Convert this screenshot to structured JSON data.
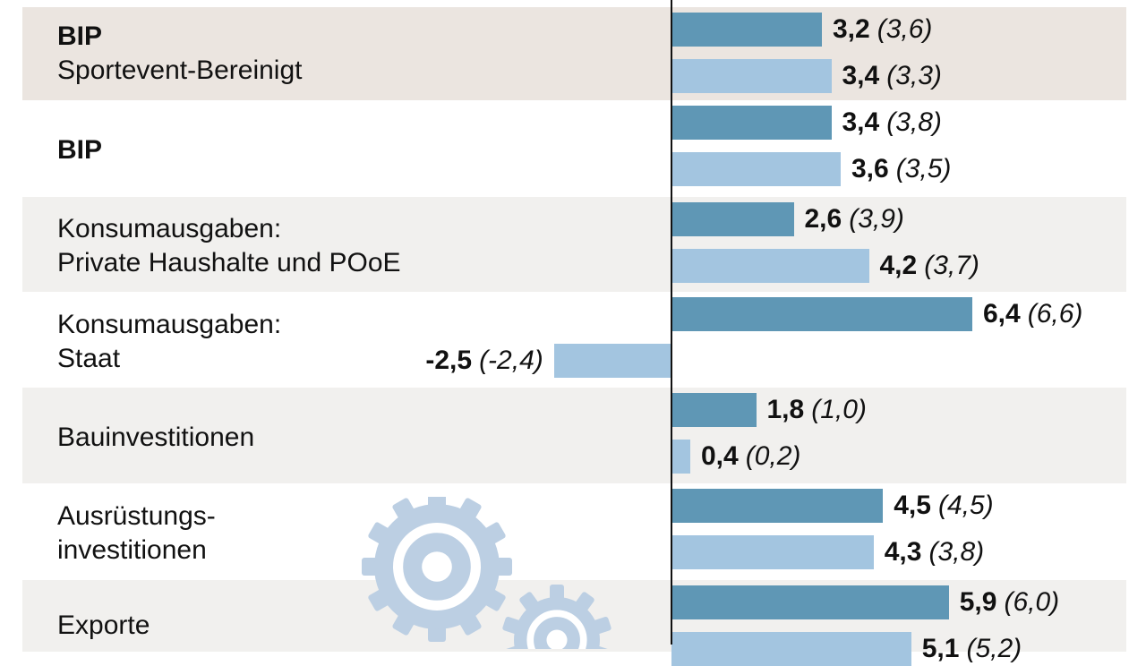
{
  "chart_data": {
    "type": "bar",
    "orientation": "horizontal",
    "colors": {
      "primary": "#5f97b5",
      "secondary": "#a3c5e0",
      "row_alt": "#f1f0ee",
      "row_highlight": "#ebe5e0"
    },
    "categories": [
      {
        "label": "BIP",
        "sublabel": "Sportevent-Bereinigt",
        "bold": true,
        "values": [
          3.2,
          3.4
        ],
        "prev": [
          3.6,
          3.3
        ],
        "value_labels": [
          "3,2",
          "3,4"
        ],
        "prev_labels": [
          "(3,6)",
          "(3,3)"
        ]
      },
      {
        "label": "BIP",
        "sublabel": "",
        "bold": true,
        "values": [
          3.4,
          3.6
        ],
        "prev": [
          3.8,
          3.5
        ],
        "value_labels": [
          "3,4",
          "3,6"
        ],
        "prev_labels": [
          "(3,8)",
          "(3,5)"
        ]
      },
      {
        "label": "Konsumausgaben:\nPrivate Haushalte und POoE",
        "sublabel": "",
        "bold": false,
        "values": [
          2.6,
          4.2
        ],
        "prev": [
          3.9,
          3.7
        ],
        "value_labels": [
          "2,6",
          "4,2"
        ],
        "prev_labels": [
          "(3,9)",
          "(3,7)"
        ]
      },
      {
        "label": "Konsumausgaben:\nStaat",
        "sublabel": "",
        "bold": false,
        "values": [
          6.4,
          -2.5
        ],
        "prev": [
          6.6,
          -2.4
        ],
        "value_labels": [
          "6,4",
          "-2,5"
        ],
        "prev_labels": [
          "(6,6)",
          "(-2,4)"
        ]
      },
      {
        "label": "Bauinvestitionen",
        "sublabel": "",
        "bold": false,
        "values": [
          1.8,
          0.4
        ],
        "prev": [
          1.0,
          0.2
        ],
        "value_labels": [
          "1,8",
          "0,4"
        ],
        "prev_labels": [
          "(1,0)",
          "(0,2)"
        ]
      },
      {
        "label": "Ausrüstungs-\ninvestitionen",
        "sublabel": "",
        "bold": false,
        "values": [
          4.5,
          4.3
        ],
        "prev": [
          4.5,
          3.8
        ],
        "value_labels": [
          "4,5",
          "4,3"
        ],
        "prev_labels": [
          "(4,5)",
          "(3,8)"
        ]
      },
      {
        "label": "Exporte",
        "sublabel": "",
        "bold": false,
        "values": [
          5.9,
          5.1
        ],
        "prev": [
          6.0,
          5.2
        ],
        "value_labels": [
          "5,9",
          "5,1"
        ],
        "prev_labels": [
          "(6,0)",
          "(5,2)"
        ]
      }
    ],
    "grid": false,
    "decoration": "gear-icons"
  }
}
